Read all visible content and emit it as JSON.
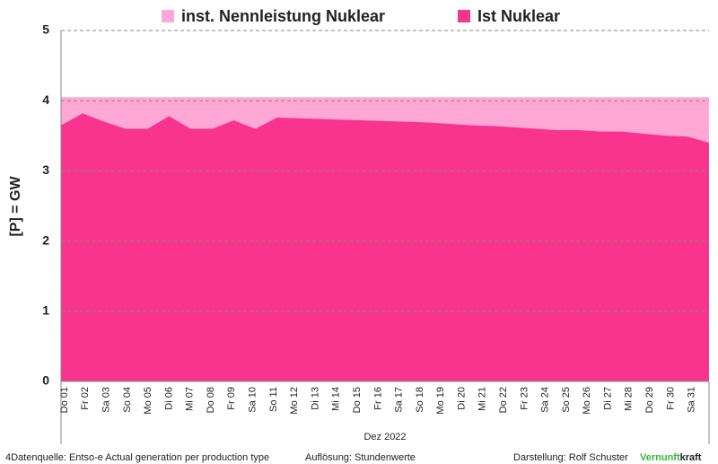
{
  "chart_data": {
    "type": "area",
    "y_label": "[P]  =  GW",
    "x_label": "Dez 2022",
    "categories": [
      "Do 01",
      "Fr 02",
      "Sa 03",
      "So 04",
      "Mo 05",
      "Di 06",
      "Mi 07",
      "Do 08",
      "Fr 09",
      "Sa 10",
      "So 11",
      "Mo 12",
      "Di 13",
      "Mi 14",
      "Do 15",
      "Fr 16",
      "Sa 17",
      "So 18",
      "Mo 19",
      "Di 20",
      "Mi 21",
      "Do 22",
      "Fr 23",
      "Sa 24",
      "So 25",
      "Mo 26",
      "Di 27",
      "Mi 28",
      "Do 29",
      "Fr 30",
      "Sa 31"
    ],
    "series": [
      {
        "name": "inst. Nennleistung Nuklear",
        "color": "#ffa8d6",
        "values": [
          4.05,
          4.05,
          4.05,
          4.05,
          4.05,
          4.05,
          4.05,
          4.05,
          4.05,
          4.05,
          4.05,
          4.05,
          4.05,
          4.05,
          4.05,
          4.05,
          4.05,
          4.05,
          4.05,
          4.05,
          4.05,
          4.05,
          4.05,
          4.05,
          4.05,
          4.05,
          4.05,
          4.05,
          4.05,
          4.05,
          4.05
        ]
      },
      {
        "name": "Ist Nuklear",
        "color": "#f9348f",
        "values": [
          3.65,
          3.82,
          3.7,
          3.6,
          3.6,
          3.78,
          3.6,
          3.6,
          3.72,
          3.6,
          3.76,
          3.75,
          3.74,
          3.73,
          3.72,
          3.71,
          3.7,
          3.69,
          3.67,
          3.65,
          3.64,
          3.62,
          3.6,
          3.58,
          3.58,
          3.56,
          3.56,
          3.53,
          3.5,
          3.49,
          3.4
        ]
      }
    ],
    "ylim": [
      0,
      5
    ],
    "yticks": [
      0,
      1,
      2,
      3,
      4,
      5
    ],
    "grid": true,
    "source": "4Datenquelle: Entso-e  Actual generation per production type",
    "resolution": "Auflösung: Stundenwerte",
    "author": "Darstellung:  Rolf Schuster",
    "brand": [
      "Vernunft",
      "kraft"
    ]
  }
}
